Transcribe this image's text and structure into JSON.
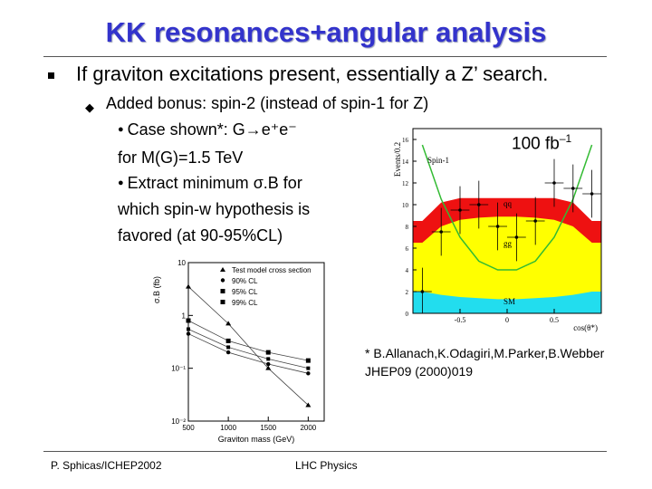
{
  "title": "KK resonances+angular analysis",
  "bullets": {
    "main": "If graviton excitations present, essentially a Z’ search.",
    "sub": "Added bonus: spin-2 (instead of spin-1 for Z)",
    "case_prefix": "Case shown*: G",
    "case_suffix": "e⁺e⁻",
    "mass": "for M(G)=1.5 TeV",
    "extract_prefix": "Extract minimum ",
    "extract_sigma": "σ",
    "extract_suffix": ".B for",
    "which": "which spin-w hypothesis is",
    "favored": "favored (at 90-95%CL)"
  },
  "lumi": {
    "value": "100 fb",
    "exp": "–1"
  },
  "citation": {
    "line1": "* B.Allanach,K.Odagiri,M.Parker,B.Webber",
    "line2": "JHEP09 (2000)019"
  },
  "footer": {
    "left": "P. Sphicas/ICHEP2002",
    "center": "LHC Physics"
  },
  "colors": {
    "title": "#3333cc",
    "red": "#ee1111",
    "yellow": "#ffff00",
    "cyan": "#22ddee",
    "green": "#33bb33"
  },
  "chart_data": [
    {
      "type": "line",
      "ylabel": "σ.B (fb)",
      "xlabel": "Graviton mass (GeV)",
      "yscale": "log",
      "x_ticks": [
        "500",
        "1000",
        "1500",
        "2000"
      ],
      "y_ticks": [
        "10",
        "1",
        "10⁻¹",
        "10⁻²"
      ],
      "xlim": [
        500,
        2200
      ],
      "ylim": [
        0.01,
        10
      ],
      "legend": [
        "Test model cross section",
        "90% CL",
        "95% CL",
        "99% CL"
      ],
      "x": [
        500,
        1000,
        1500,
        2000
      ],
      "series": [
        {
          "name": "Test model cross section",
          "values": [
            3.5,
            0.7,
            0.1,
            0.02
          ]
        },
        {
          "name": "90% CL",
          "values": [
            0.45,
            0.2,
            0.12,
            0.08
          ]
        },
        {
          "name": "95% CL",
          "values": [
            0.55,
            0.25,
            0.15,
            0.1
          ]
        },
        {
          "name": "99% CL",
          "values": [
            0.8,
            0.33,
            0.2,
            0.14
          ]
        }
      ]
    },
    {
      "type": "area",
      "ylabel": "Events/0.2",
      "xlabel": "cos(θ*)",
      "x_ticks": [
        "-0.5",
        "0",
        "0.5"
      ],
      "y_ticks": [
        "0",
        "2",
        "4",
        "6",
        "8",
        "10",
        "12",
        "14",
        "16"
      ],
      "xlim": [
        -1,
        1
      ],
      "ylim": [
        0,
        17
      ],
      "annotations": [
        "Spin-1",
        "qq",
        "gg",
        "SM"
      ],
      "x": [
        -0.9,
        -0.7,
        -0.5,
        -0.3,
        -0.1,
        0.1,
        0.3,
        0.5,
        0.7,
        0.9
      ],
      "series": [
        {
          "name": "SM",
          "values": [
            2.0,
            1.7,
            1.5,
            1.4,
            1.3,
            1.3,
            1.4,
            1.5,
            1.7,
            2.0
          ]
        },
        {
          "name": "gg",
          "values": [
            6.5,
            8.0,
            8.6,
            8.8,
            8.9,
            8.9,
            8.8,
            8.6,
            8.0,
            6.5
          ]
        },
        {
          "name": "qq",
          "values": [
            8.5,
            10.2,
            10.6,
            10.6,
            10.6,
            10.6,
            10.6,
            10.6,
            10.2,
            8.5
          ]
        },
        {
          "name": "Spin-1",
          "values": [
            15.5,
            10.5,
            7.0,
            4.8,
            4.0,
            4.0,
            4.8,
            7.0,
            10.5,
            15.5
          ]
        },
        {
          "name": "data",
          "values": [
            2.0,
            7.5,
            9.5,
            10.0,
            8.0,
            7.0,
            8.5,
            12.0,
            11.5,
            11.0
          ]
        }
      ]
    }
  ]
}
